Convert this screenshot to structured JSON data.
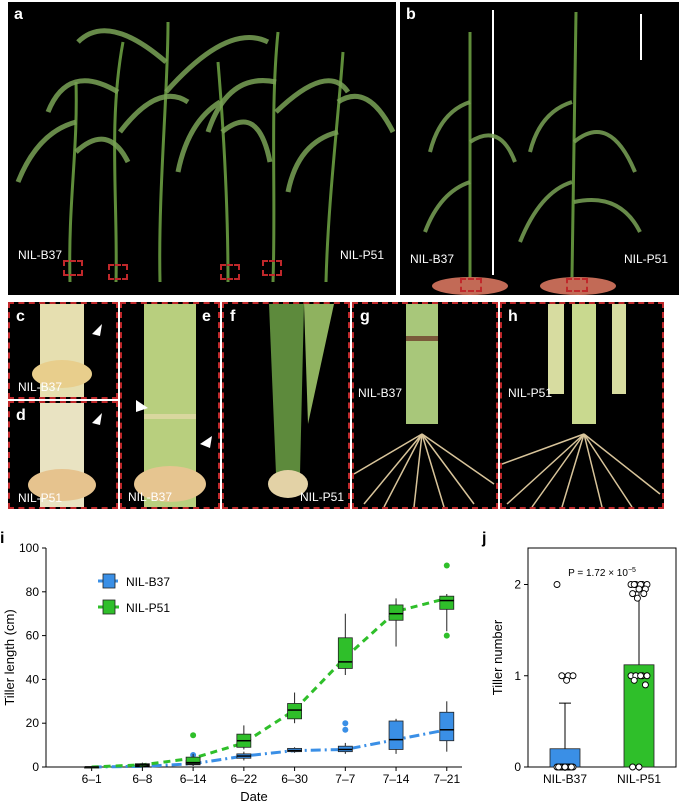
{
  "figure": {
    "panels": {
      "a": {
        "label": "a",
        "left_tag": "NIL-B37",
        "right_tag": "NIL-P51"
      },
      "b": {
        "label": "b",
        "left_tag": "NIL-B37",
        "right_tag": "NIL-P51"
      },
      "c": {
        "label": "c",
        "tag": "NIL-B37"
      },
      "d": {
        "label": "d",
        "tag": "NIL-P51"
      },
      "e": {
        "label": "e",
        "tag": "NIL-B37"
      },
      "f": {
        "label": "f",
        "tag": "NIL-P51"
      },
      "g": {
        "label": "g",
        "tag": "NIL-B37"
      },
      "h": {
        "label": "h",
        "tag": "NIL-P51"
      }
    },
    "i_label": "i",
    "j_label": "j"
  },
  "chart_data": [
    {
      "type": "box",
      "panel": "i",
      "xlabel": "Date",
      "ylabel": "Tiller length (cm)",
      "categories": [
        "6–1",
        "6–8",
        "6–14",
        "6–22",
        "6–30",
        "7–7",
        "7–14",
        "7–21"
      ],
      "ylim": [
        0,
        100
      ],
      "yticks": [
        0,
        20,
        40,
        60,
        80,
        100
      ],
      "legend_position": "upper-left",
      "series": [
        {
          "name": "NIL-B37",
          "color": "#3a8fe6",
          "median": [
            0,
            0.3,
            1.5,
            5,
            7.5,
            8,
            12.5,
            17
          ],
          "q1": [
            0,
            0.2,
            1,
            4,
            7,
            7,
            8,
            12
          ],
          "q3": [
            0,
            0.5,
            3,
            6,
            8.5,
            9.5,
            21,
            25
          ],
          "wlo": [
            0,
            0,
            0.5,
            3,
            6.5,
            6,
            6,
            7
          ],
          "whi": [
            0,
            0.8,
            5,
            7,
            9,
            11,
            22,
            30
          ],
          "outliers": [
            [],
            [],
            [
              5.5
            ],
            [],
            [],
            [
              17,
              20
            ],
            [],
            []
          ],
          "trend": [
            0,
            0.3,
            1.5,
            5,
            7.5,
            8,
            12.5,
            17
          ]
        },
        {
          "name": "NIL-P51",
          "color": "#2fbf2a",
          "median": [
            0,
            1,
            2,
            12,
            26,
            48,
            70,
            76
          ],
          "q1": [
            0,
            0.8,
            1.5,
            9,
            22,
            45,
            67,
            72
          ],
          "q3": [
            0,
            1.5,
            4.5,
            15,
            29,
            59,
            74,
            78
          ],
          "wlo": [
            0,
            0.5,
            0.5,
            8,
            20,
            42,
            55,
            62
          ],
          "whi": [
            0,
            2,
            6,
            19,
            34,
            70,
            77,
            79
          ],
          "outliers": [
            [],
            [],
            [
              14.5
            ],
            [],
            [],
            [],
            [],
            [
              60,
              92
            ]
          ],
          "trend": [
            0,
            1,
            4,
            11,
            26,
            50,
            71,
            77
          ]
        }
      ]
    },
    {
      "type": "bar",
      "panel": "j",
      "ylabel": "Tiller number",
      "categories": [
        "NIL-B37",
        "NIL-P51"
      ],
      "values": [
        0.2,
        1.12
      ],
      "errors": [
        0.5,
        0.8
      ],
      "colors": [
        "#3a8fe6",
        "#2fbf2a"
      ],
      "ylim": [
        0,
        2.4
      ],
      "yticks": [
        0,
        1,
        2
      ],
      "annotation": "P = 1.72 × 10",
      "annotation_exp": "−5",
      "points": [
        [
          2,
          1,
          1,
          1,
          0.95,
          0,
          0,
          0,
          0,
          0,
          0,
          0,
          0,
          0,
          0,
          0,
          0,
          0,
          0,
          0
        ],
        [
          2,
          2,
          2,
          2,
          2,
          2,
          1.95,
          1.95,
          1.9,
          1.9,
          1.85,
          1,
          1,
          1,
          1,
          1,
          0.95,
          0.9,
          0,
          0
        ]
      ]
    }
  ]
}
